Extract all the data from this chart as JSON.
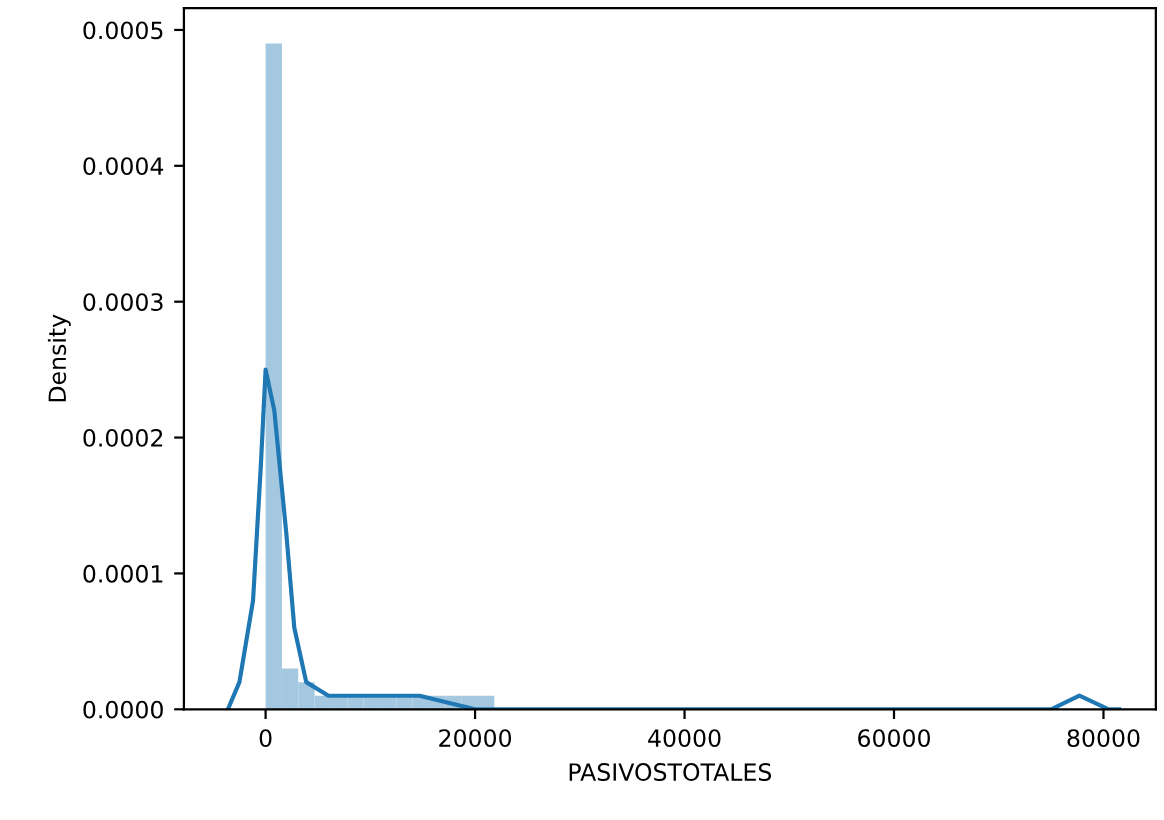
{
  "chart_data": {
    "type": "histogram",
    "xlabel": "PASIVOSTOTALES",
    "ylabel": "Density",
    "xlim": [
      -7800,
      85000
    ],
    "ylim": [
      0,
      0.000516
    ],
    "xticks": [
      0,
      20000,
      40000,
      60000,
      80000
    ],
    "yticks": [
      {
        "value": 0,
        "label": "0.0000"
      },
      {
        "value": 0.0001,
        "label": "0.0001"
      },
      {
        "value": 0.0002,
        "label": "0.0002"
      },
      {
        "value": 0.0003,
        "label": "0.0003"
      },
      {
        "value": 0.0004,
        "label": "0.0004"
      },
      {
        "value": 0.0005,
        "label": "0.0005"
      }
    ],
    "grid": false,
    "series": [
      {
        "color": "#a5c8e1",
        "bins": [
          0,
          1560,
          3120,
          4680,
          6240,
          7800,
          9360,
          10920,
          12480,
          14040,
          15600,
          17160,
          18720,
          20280,
          21840,
          23400,
          24960,
          26520,
          28080,
          29640,
          31200,
          32760,
          34320,
          35880,
          37440,
          39000,
          40560,
          42120,
          43680,
          45240,
          46800,
          48360,
          49920,
          51480,
          53040,
          54600,
          56160,
          57720,
          59280,
          60840,
          62400,
          63960,
          65520,
          67080,
          68640,
          70200,
          71760,
          73320,
          74880,
          76440,
          78000
        ],
        "values": [
          0.00049,
          3e-05,
          2e-05,
          1e-05,
          1e-05,
          1e-05,
          1e-05,
          1e-05,
          1e-05,
          1e-05,
          1e-05,
          1e-05,
          1e-05,
          1e-05,
          0,
          0,
          0,
          0,
          0,
          0,
          0,
          0,
          0,
          0,
          0,
          0,
          0,
          0,
          0,
          0,
          0,
          0,
          0,
          0,
          0,
          0,
          0,
          0,
          0,
          0,
          0,
          0,
          0,
          0,
          0,
          0,
          0,
          0,
          0,
          0
        ]
      },
      {
        "type": "line",
        "color": "#1f77b4",
        "x": [
          -3600,
          -2500,
          -1200,
          -450,
          0,
          830,
          1970,
          2740,
          3880,
          6000,
          8300,
          14700,
          20000,
          30000,
          50000,
          70000,
          75000,
          77700,
          80500,
          81500
        ],
        "values": [
          0,
          2e-05,
          8e-05,
          0.00018,
          0.00025,
          0.00022,
          0.00013,
          6e-05,
          2e-05,
          1e-05,
          1e-05,
          1e-05,
          0,
          0,
          0,
          0,
          0,
          1e-05,
          0,
          0
        ]
      }
    ]
  }
}
